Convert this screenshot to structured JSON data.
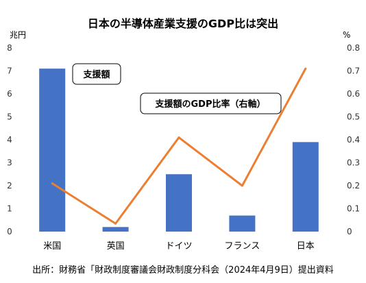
{
  "chart_data": {
    "type": "bar",
    "title": "日本の半導体産業支援のGDP比は突出",
    "left_axis_unit": "兆円",
    "right_axis_unit": "%",
    "categories": [
      "米国",
      "英国",
      "ドイツ",
      "フランス",
      "日本"
    ],
    "ylim_left": [
      0,
      8
    ],
    "ylim_right": [
      0,
      0.8
    ],
    "left_ticks": [
      "0",
      "1",
      "2",
      "3",
      "4",
      "5",
      "6",
      "7",
      "8"
    ],
    "right_ticks": [
      "0",
      "0.1",
      "0.2",
      "0.3",
      "0.4",
      "0.5",
      "0.6",
      "0.7",
      "0.8"
    ],
    "series": [
      {
        "name": "支援額",
        "kind": "bar",
        "axis": "left",
        "color": "#4472C4",
        "values": [
          7.1,
          0.2,
          2.5,
          0.7,
          3.9
        ]
      },
      {
        "name": "支援額のGDP比率（右軸）",
        "kind": "line",
        "axis": "right",
        "color": "#ED7D31",
        "values": [
          0.21,
          0.035,
          0.41,
          0.2,
          0.71
        ]
      }
    ],
    "grid": false,
    "legend": "callout boxes",
    "source": "出所：財務省「財政制度審議会財政制度分科会（2024年4月9日）提出資料"
  }
}
